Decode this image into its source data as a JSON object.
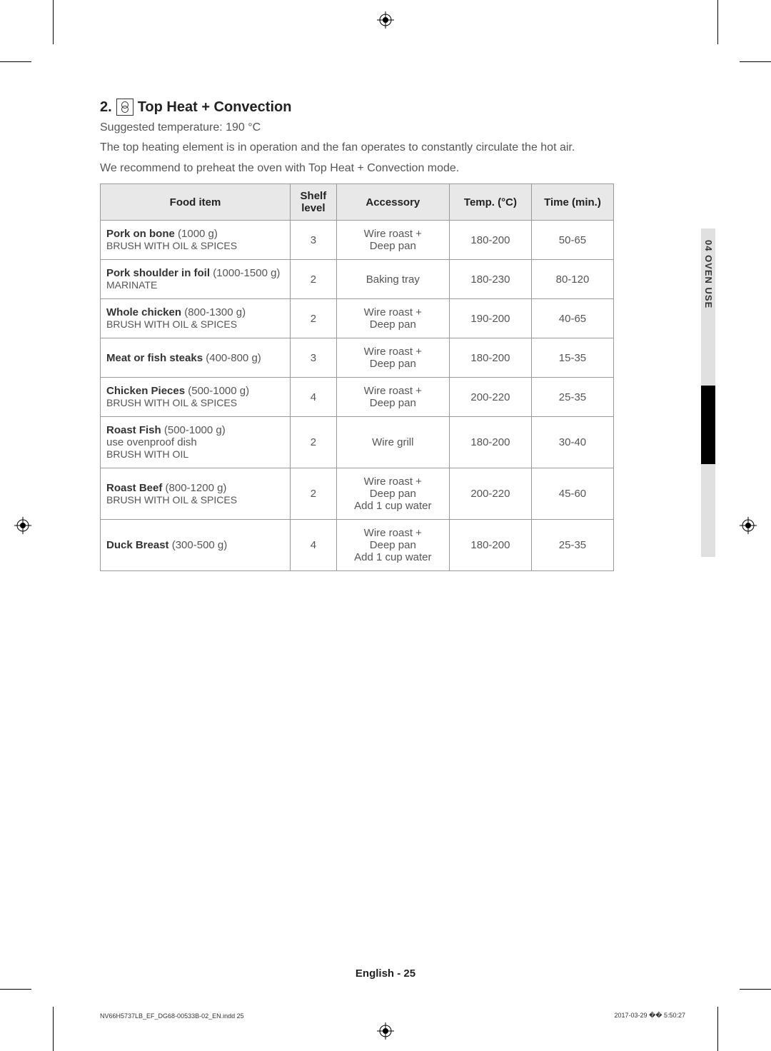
{
  "section": {
    "number": "2.",
    "title": "Top Heat + Convection",
    "suggested_temp": "Suggested temperature: 190 °C",
    "description": "The top heating element is in operation and the fan operates to constantly circulate the hot air.",
    "preheat_note": "We recommend to preheat the oven with Top Heat + Convection mode."
  },
  "table": {
    "headers": {
      "food": "Food item",
      "shelf": "Shelf level",
      "accessory": "Accessory",
      "temp": "Temp. (°C)",
      "time": "Time (min.)"
    },
    "rows": [
      {
        "name": "Pork on bone",
        "weight": "(1000 g)",
        "note": "BRUSH WITH OIL & SPICES",
        "shelf": "3",
        "accessory": "Wire roast + Deep pan",
        "temp": "180-200",
        "time": "50-65"
      },
      {
        "name": "Pork shoulder in foil",
        "weight": "(1000-1500 g)",
        "note": "MARINATE",
        "shelf": "2",
        "accessory": "Baking tray",
        "temp": "180-230",
        "time": "80-120"
      },
      {
        "name": "Whole chicken",
        "weight": "(800-1300 g)",
        "note": "BRUSH WITH OIL & SPICES",
        "shelf": "2",
        "accessory": "Wire roast + Deep pan",
        "temp": "190-200",
        "time": "40-65"
      },
      {
        "name": "Meat or fish steaks",
        "weight": "(400-800 g)",
        "note": "",
        "shelf": "3",
        "accessory": "Wire roast + Deep pan",
        "temp": "180-200",
        "time": "15-35"
      },
      {
        "name": "Chicken Pieces",
        "weight": "(500-1000 g)",
        "note": "BRUSH WITH OIL & SPICES",
        "shelf": "4",
        "accessory": "Wire roast + Deep pan",
        "temp": "200-220",
        "time": "25-35"
      },
      {
        "name": "Roast Fish",
        "weight": "(500-1000 g)",
        "note_lower": "use ovenproof dish",
        "note": "BRUSH WITH OIL",
        "shelf": "2",
        "accessory": "Wire grill",
        "temp": "180-200",
        "time": "30-40"
      },
      {
        "name": "Roast Beef",
        "weight": "(800-1200 g)",
        "note": "BRUSH WITH OIL & SPICES",
        "shelf": "2",
        "accessory": "Wire roast + Deep pan Add 1 cup water",
        "temp": "200-220",
        "time": "45-60"
      },
      {
        "name": "Duck Breast",
        "weight": "(300-500 g)",
        "note": "",
        "shelf": "4",
        "accessory": "Wire roast + Deep pan Add 1 cup water",
        "temp": "180-200",
        "time": "25-35"
      }
    ]
  },
  "side_tab": "04  OVEN USE",
  "footer": "English - 25",
  "print_info": {
    "left": "NV66H5737LB_EF_DG68-00533B-02_EN.indd   25",
    "right": "2017-03-29   �� 5:50:27"
  },
  "colors": {
    "text_primary": "#333333",
    "text_secondary": "#555555",
    "header_bg": "#e8e8e8",
    "border": "#999999",
    "tab_bg": "#e0e0e0",
    "tab_black": "#000000",
    "page_bg": "#ffffff"
  }
}
